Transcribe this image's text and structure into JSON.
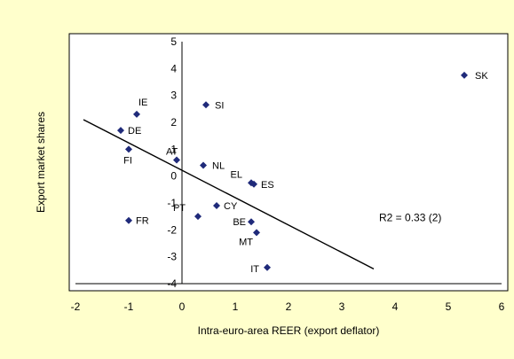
{
  "chart_data": {
    "type": "scatter",
    "xlabel": "Intra-euro-area REER (export deflator)",
    "ylabel": "Export market shares",
    "xlim": [
      -2,
      6
    ],
    "ylim": [
      -4,
      5
    ],
    "xticks": [
      -2,
      -1,
      0,
      1,
      2,
      3,
      4,
      5,
      6
    ],
    "yticks": [
      -4,
      -3,
      -2,
      -1,
      0,
      1,
      2,
      3,
      4,
      5
    ],
    "grid": false,
    "colors": {
      "marker": "#1f2a7a",
      "plot_bg": "#ffffff",
      "frame_bg": "#ffffcc",
      "line": "#000000"
    },
    "points": [
      {
        "label": "SK",
        "x": 5.3,
        "y": 3.75
      },
      {
        "label": "IE",
        "x": -0.85,
        "y": 2.3
      },
      {
        "label": "SI",
        "x": 0.45,
        "y": 2.65
      },
      {
        "label": "DE",
        "x": -1.15,
        "y": 1.7
      },
      {
        "label": "FI",
        "x": -1.0,
        "y": 1.0
      },
      {
        "label": "AT",
        "x": -0.1,
        "y": 0.6
      },
      {
        "label": "NL",
        "x": 0.4,
        "y": 0.4
      },
      {
        "label": "EL",
        "x": 1.3,
        "y": -0.25
      },
      {
        "label": "ES",
        "x": 1.35,
        "y": -0.3
      },
      {
        "label": "PT",
        "x": 0.3,
        "y": -1.5
      },
      {
        "label": "CY",
        "x": 0.65,
        "y": -1.1
      },
      {
        "label": "BE",
        "x": 1.3,
        "y": -1.7
      },
      {
        "label": "MT",
        "x": 1.4,
        "y": -2.1
      },
      {
        "label": "FR",
        "x": -1.0,
        "y": -1.65
      },
      {
        "label": "IT",
        "x": 1.6,
        "y": -3.4
      }
    ],
    "trendline": {
      "x": [
        -1.85,
        3.6
      ],
      "y": [
        2.1,
        -3.45
      ]
    },
    "annotation": "R2 = 0.33 (2)"
  }
}
